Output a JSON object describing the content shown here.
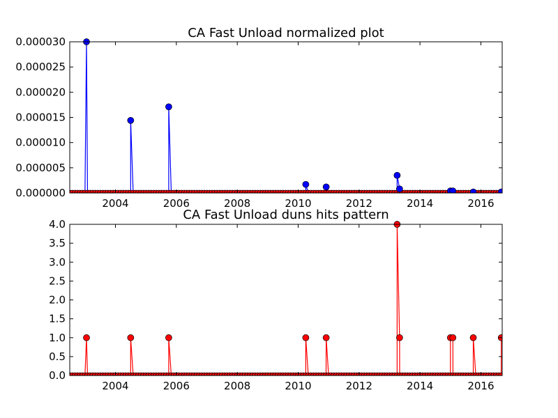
{
  "chart_data": [
    {
      "type": "line",
      "title": "CA Fast Unload normalized plot",
      "xlabel": "",
      "ylabel": "",
      "xlim": [
        2002.5,
        2016.7
      ],
      "ylim": [
        0,
        3e-05
      ],
      "x_ticks": [
        "2004",
        "2006",
        "2008",
        "2010",
        "2012",
        "2014",
        "2016"
      ],
      "y_ticks": [
        "0.000000",
        "0.000005",
        "0.000010",
        "0.000015",
        "0.000020",
        "0.000025",
        "0.000030"
      ],
      "color": "#0000ff",
      "baseline_color": "#ff0000",
      "markers": "circle",
      "grid": false,
      "points": [
        {
          "x": 2003.05,
          "y": 3e-05
        },
        {
          "x": 2004.5,
          "y": 1.44e-05
        },
        {
          "x": 2005.75,
          "y": 1.71e-05
        },
        {
          "x": 2010.25,
          "y": 1.7e-06
        },
        {
          "x": 2010.92,
          "y": 1.2e-06
        },
        {
          "x": 2013.25,
          "y": 3.5e-06
        },
        {
          "x": 2013.33,
          "y": 8e-07
        },
        {
          "x": 2015.0,
          "y": 4e-07
        },
        {
          "x": 2015.08,
          "y": 4e-07
        },
        {
          "x": 2015.75,
          "y": 2e-07
        },
        {
          "x": 2016.67,
          "y": 2e-07
        }
      ]
    },
    {
      "type": "line",
      "title": "CA Fast Unload duns hits pattern",
      "xlabel": "",
      "ylabel": "",
      "xlim": [
        2002.5,
        2016.7
      ],
      "ylim": [
        0,
        4.0
      ],
      "x_ticks": [
        "2004",
        "2006",
        "2008",
        "2010",
        "2012",
        "2014",
        "2016"
      ],
      "y_ticks": [
        "0.0",
        "0.5",
        "1.0",
        "1.5",
        "2.0",
        "2.5",
        "3.0",
        "3.5",
        "4.0"
      ],
      "color": "#ff0000",
      "markers": "circle",
      "grid": false,
      "points": [
        {
          "x": 2003.05,
          "y": 1
        },
        {
          "x": 2004.5,
          "y": 1
        },
        {
          "x": 2005.75,
          "y": 1
        },
        {
          "x": 2010.25,
          "y": 1
        },
        {
          "x": 2010.92,
          "y": 1
        },
        {
          "x": 2013.25,
          "y": 4
        },
        {
          "x": 2013.33,
          "y": 1
        },
        {
          "x": 2015.0,
          "y": 1
        },
        {
          "x": 2015.08,
          "y": 1
        },
        {
          "x": 2015.75,
          "y": 1
        },
        {
          "x": 2016.67,
          "y": 1
        }
      ]
    }
  ]
}
